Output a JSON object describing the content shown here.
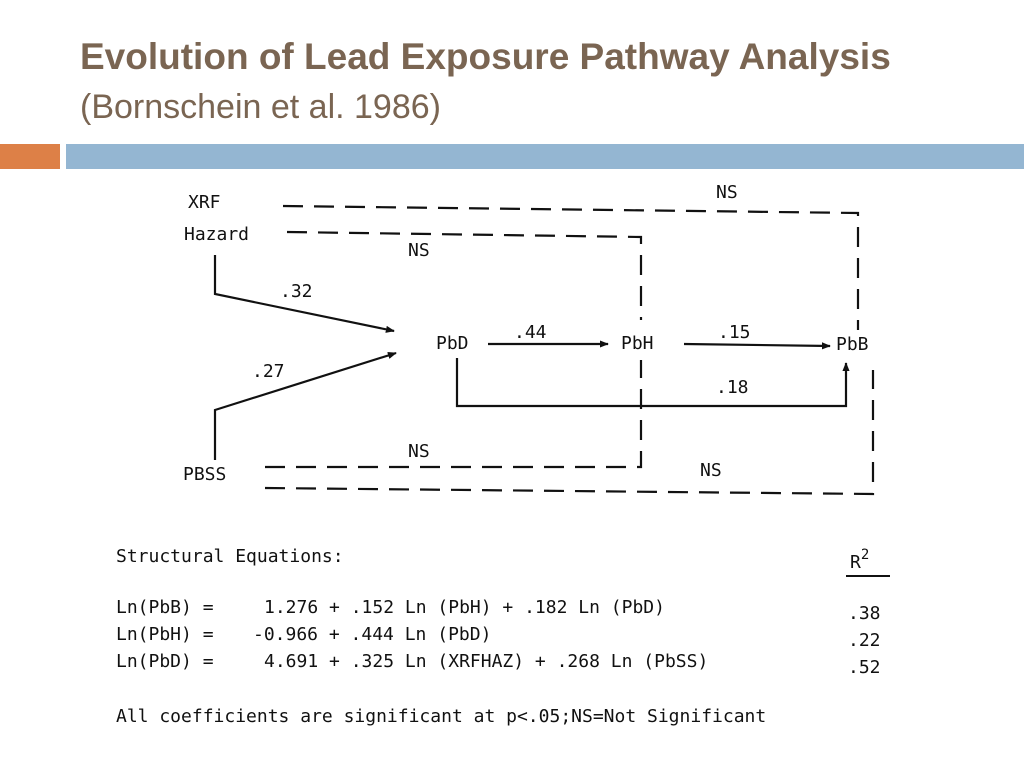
{
  "slide": {
    "title": "Evolution of Lead Exposure Pathway Analysis",
    "subtitle": "(Bornschein et al. 1986)",
    "colors": {
      "title": "#7a6552",
      "accent_bar": "#dd8047",
      "main_bar": "#94b6d2"
    }
  },
  "diagram": {
    "nodes": {
      "xrf_line1": "XRF",
      "xrf_line2": "Hazard",
      "pbss": "PBSS",
      "pbd": "PbD",
      "pbh": "PbH",
      "pbb": "PbB"
    },
    "paths": {
      "xrf_to_pbd": ".32",
      "pbss_to_pbd": ".27",
      "pbd_to_pbh": ".44",
      "pbh_to_pbb": ".15",
      "pbd_to_pbb": ".18",
      "xrf_to_pbb": "NS",
      "xrf_to_pbh": "NS",
      "pbss_to_pbh": "NS",
      "pbss_to_pbb": "NS"
    }
  },
  "equations": {
    "heading": "Structural Equations:",
    "r2_label": "R",
    "r2_exponent": "2",
    "rows": [
      {
        "lhs": "Ln(PbB) =",
        "rhs": "1.276 + .152 Ln (PbH) + .182 Ln (PbD)",
        "r2": ".38"
      },
      {
        "lhs": "Ln(PbH) =",
        "rhs": "-0.966 + .444 Ln (PbD)",
        "r2": ".22"
      },
      {
        "lhs": "Ln(PbD) =",
        "rhs": "4.691 + .325 Ln (XRFHAZ) + .268 Ln (PbSS)",
        "r2": ".52"
      }
    ],
    "footnote": "All coefficients are significant at p<.05;NS=Not Significant"
  }
}
